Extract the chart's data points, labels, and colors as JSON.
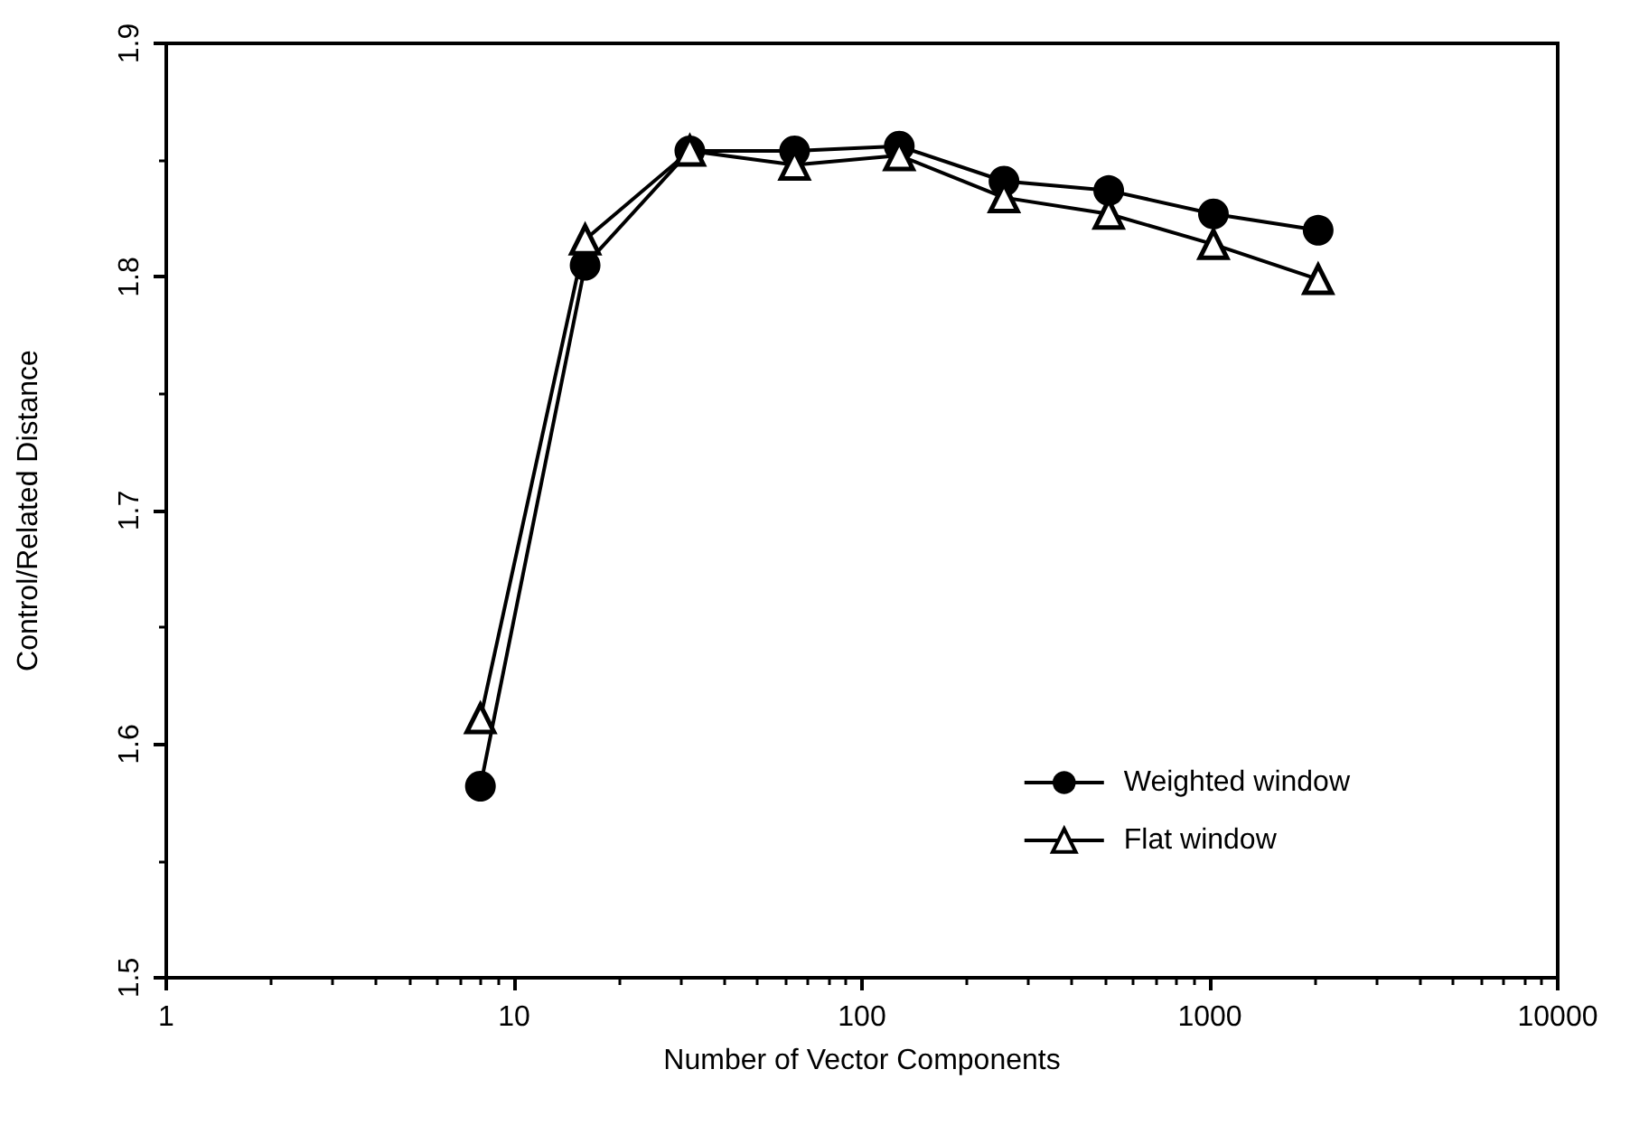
{
  "chart_data": {
    "type": "line",
    "xlabel": "Number of Vector Components",
    "ylabel": "Control/Related Distance",
    "x": [
      8,
      16,
      32,
      64,
      128,
      256,
      512,
      1024,
      2048
    ],
    "series": [
      {
        "name": "Weighted window",
        "color": "#000000",
        "marker": "circle",
        "values": [
          1.582,
          1.805,
          1.854,
          1.854,
          1.856,
          1.841,
          1.837,
          1.827,
          1.82
        ]
      },
      {
        "name": "Flat window",
        "color": "#000000",
        "marker": "triangle",
        "values": [
          1.611,
          1.816,
          1.854,
          1.848,
          1.852,
          1.834,
          1.827,
          1.814,
          1.799
        ]
      }
    ],
    "log": "x",
    "xlim": [
      1,
      10000
    ],
    "xticks": [
      1,
      10,
      100,
      1000,
      10000
    ],
    "ylim": [
      1.5,
      1.9
    ],
    "yticks": [
      1.5,
      1.6,
      1.7,
      1.8,
      1.9
    ],
    "grid": false,
    "legend": "bottom right",
    "line_style": "solid"
  }
}
